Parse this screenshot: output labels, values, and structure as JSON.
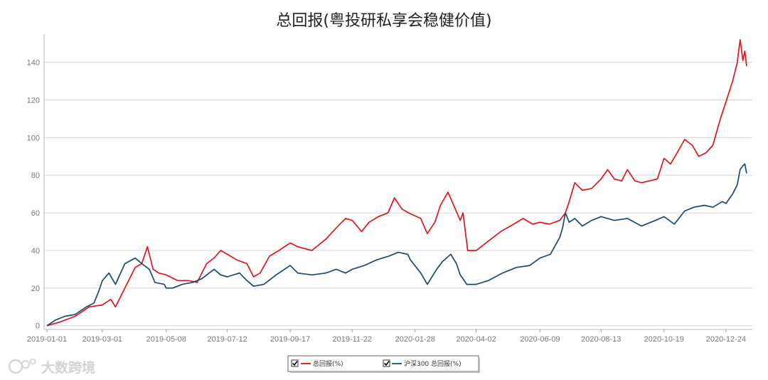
{
  "chart_data": {
    "type": "line",
    "title": "总回报(粤投研私享会稳健价值)",
    "xlabel": "",
    "ylabel": "",
    "x_ticks": [
      "2019-01-01",
      "2019-03-01",
      "2019-05-08",
      "2019-07-12",
      "2019-09-17",
      "2019-11-22",
      "2020-01-28",
      "2020-04-02",
      "2020-06-09",
      "2020-08-13",
      "2020-10-19",
      "2020-12-24"
    ],
    "y_ticks": [
      0,
      20,
      40,
      60,
      80,
      100,
      120,
      140
    ],
    "ylim": [
      -2,
      155
    ],
    "grid": true,
    "legend_position": "bottom",
    "series": [
      {
        "name": "总回报(%)",
        "color": "#e3121b",
        "x": [
          "2019-01-01",
          "2019-01-15",
          "2019-01-31",
          "2019-02-15",
          "2019-03-01",
          "2019-03-10",
          "2019-03-15",
          "2019-03-25",
          "2019-04-05",
          "2019-04-12",
          "2019-04-18",
          "2019-04-24",
          "2019-04-30",
          "2019-05-08",
          "2019-05-20",
          "2019-06-01",
          "2019-06-10",
          "2019-06-20",
          "2019-06-28",
          "2019-07-05",
          "2019-07-12",
          "2019-07-22",
          "2019-08-02",
          "2019-08-09",
          "2019-08-16",
          "2019-08-26",
          "2019-09-05",
          "2019-09-17",
          "2019-09-25",
          "2019-10-10",
          "2019-10-25",
          "2019-11-05",
          "2019-11-15",
          "2019-11-22",
          "2019-12-02",
          "2019-12-10",
          "2019-12-20",
          "2019-12-30",
          "2020-01-06",
          "2020-01-14",
          "2020-01-21",
          "2020-02-03",
          "2020-02-10",
          "2020-02-18",
          "2020-02-24",
          "2020-03-03",
          "2020-03-10",
          "2020-03-16",
          "2020-03-19",
          "2020-03-24",
          "2020-04-02",
          "2020-04-15",
          "2020-04-28",
          "2020-05-12",
          "2020-05-22",
          "2020-06-01",
          "2020-06-09",
          "2020-06-19",
          "2020-06-30",
          "2020-07-06",
          "2020-07-10",
          "2020-07-16",
          "2020-07-24",
          "2020-08-03",
          "2020-08-13",
          "2020-08-20",
          "2020-08-27",
          "2020-09-04",
          "2020-09-10",
          "2020-09-18",
          "2020-09-25",
          "2020-10-12",
          "2020-10-19",
          "2020-10-26",
          "2020-11-02",
          "2020-11-10",
          "2020-11-18",
          "2020-11-25",
          "2020-12-03",
          "2020-12-10",
          "2020-12-18",
          "2020-12-24",
          "2020-12-31",
          "2021-01-05",
          "2021-01-08",
          "2021-01-11",
          "2021-01-13",
          "2021-01-15"
        ],
        "values": [
          0,
          2,
          5,
          10,
          11,
          14,
          10,
          20,
          31,
          33,
          42,
          30,
          28,
          27,
          24,
          24,
          23,
          33,
          36,
          40,
          38,
          35,
          33,
          26,
          28,
          37,
          40,
          44,
          42,
          40,
          46,
          52,
          57,
          56,
          50,
          55,
          58,
          60,
          68,
          62,
          60,
          57,
          49,
          55,
          64,
          71,
          63,
          56,
          60,
          40,
          40,
          45,
          50,
          54,
          57,
          54,
          55,
          54,
          56,
          60,
          66,
          76,
          72,
          73,
          78,
          83,
          78,
          77,
          83,
          77,
          76,
          78,
          89,
          86,
          92,
          99,
          96,
          90,
          92,
          96,
          110,
          119,
          130,
          140,
          152,
          141,
          146,
          138
        ],
        "unit": "%"
      },
      {
        "name": "沪深300 总回报(%)",
        "color": "#1a4a6e",
        "x": [
          "2019-01-01",
          "2019-01-10",
          "2019-01-20",
          "2019-01-31",
          "2019-02-12",
          "2019-02-20",
          "2019-02-25",
          "2019-03-01",
          "2019-03-08",
          "2019-03-15",
          "2019-03-25",
          "2019-04-05",
          "2019-04-12",
          "2019-04-20",
          "2019-04-26",
          "2019-05-06",
          "2019-05-08",
          "2019-05-15",
          "2019-05-25",
          "2019-06-05",
          "2019-06-15",
          "2019-06-28",
          "2019-07-05",
          "2019-07-12",
          "2019-07-25",
          "2019-08-02",
          "2019-08-09",
          "2019-08-20",
          "2019-09-02",
          "2019-09-17",
          "2019-09-25",
          "2019-10-10",
          "2019-10-25",
          "2019-11-05",
          "2019-11-15",
          "2019-11-22",
          "2019-12-05",
          "2019-12-18",
          "2019-12-31",
          "2020-01-10",
          "2020-01-20",
          "2020-01-23",
          "2020-02-03",
          "2020-02-10",
          "2020-02-20",
          "2020-02-26",
          "2020-03-06",
          "2020-03-12",
          "2020-03-16",
          "2020-03-19",
          "2020-03-23",
          "2020-04-02",
          "2020-04-15",
          "2020-04-30",
          "2020-05-15",
          "2020-05-29",
          "2020-06-09",
          "2020-06-20",
          "2020-06-30",
          "2020-07-03",
          "2020-07-06",
          "2020-07-10",
          "2020-07-16",
          "2020-07-24",
          "2020-08-03",
          "2020-08-13",
          "2020-08-27",
          "2020-09-10",
          "2020-09-25",
          "2020-10-10",
          "2020-10-19",
          "2020-10-30",
          "2020-11-10",
          "2020-11-20",
          "2020-12-01",
          "2020-12-10",
          "2020-12-20",
          "2020-12-24",
          "2020-12-31",
          "2021-01-05",
          "2021-01-08",
          "2021-01-11",
          "2021-01-13",
          "2021-01-15"
        ],
        "values": [
          0,
          3,
          5,
          6,
          10,
          12,
          18,
          24,
          28,
          22,
          33,
          36,
          33,
          30,
          23,
          22,
          20,
          20,
          22,
          23,
          25,
          30,
          27,
          26,
          28,
          24,
          21,
          22,
          27,
          32,
          28,
          27,
          28,
          30,
          28,
          30,
          32,
          35,
          37,
          39,
          38,
          35,
          28,
          22,
          30,
          34,
          38,
          33,
          27,
          25,
          22,
          22,
          24,
          28,
          31,
          32,
          36,
          38,
          47,
          52,
          60,
          55,
          57,
          53,
          56,
          58,
          56,
          57,
          53,
          56,
          58,
          54,
          61,
          63,
          64,
          63,
          66,
          65,
          70,
          75,
          83,
          85,
          86,
          81
        ]
      }
    ]
  },
  "watermark": {
    "text": "大数跨境"
  }
}
